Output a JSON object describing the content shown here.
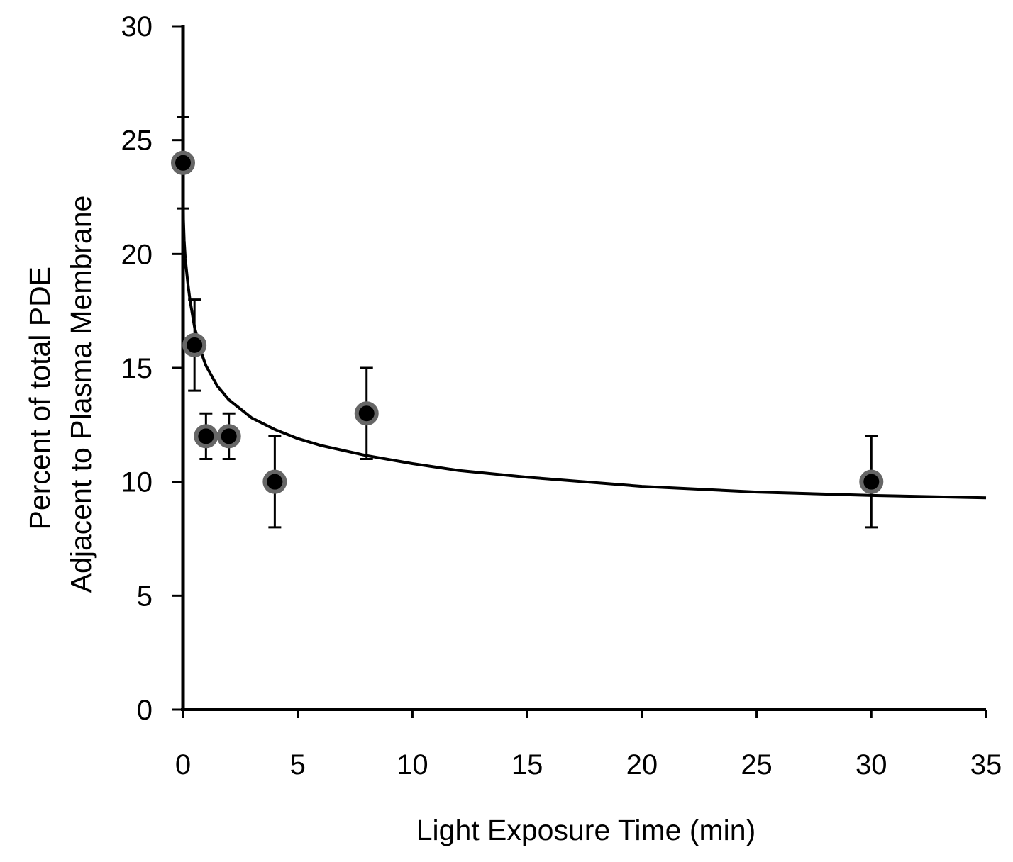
{
  "chart_data": {
    "type": "scatter",
    "title": "",
    "xlabel": "Light Exposure Time (min)",
    "ylabel": [
      "Percent of total PDE",
      "Adjacent to Plasma Membrane"
    ],
    "xlim": [
      0,
      35
    ],
    "ylim": [
      0,
      30
    ],
    "x_ticks": [
      0,
      5,
      10,
      15,
      20,
      25,
      30,
      35
    ],
    "y_ticks": [
      0,
      5,
      10,
      15,
      20,
      25,
      30
    ],
    "x_tick_labels": [
      "0",
      "5",
      "10",
      "15",
      "20",
      "25",
      "30",
      "35"
    ],
    "y_tick_labels": [
      "0",
      "5",
      "10",
      "15",
      "20",
      "25",
      "30"
    ],
    "grid": false,
    "legend": "none",
    "series": [
      {
        "x": [
          0,
          0.5,
          1,
          2,
          4,
          8,
          30
        ],
        "y": [
          24,
          16,
          12,
          12,
          10,
          13,
          10
        ],
        "error": [
          2,
          2,
          1,
          1,
          2,
          2,
          2
        ],
        "marker_fill": "#000000",
        "marker_edge": "#666666"
      }
    ],
    "fit_curve": {
      "x": [
        0,
        0.02,
        0.05,
        0.1,
        0.2,
        0.3,
        0.5,
        0.75,
        1,
        1.5,
        2,
        3,
        4,
        5,
        6,
        8,
        10,
        12,
        15,
        20,
        25,
        30,
        35
      ],
      "y": [
        24,
        21.5,
        20.6,
        19.8,
        18.8,
        18.0,
        16.8,
        15.8,
        15.1,
        14.2,
        13.6,
        12.8,
        12.3,
        11.9,
        11.6,
        11.15,
        10.8,
        10.5,
        10.2,
        9.8,
        9.55,
        9.4,
        9.3
      ],
      "color": "#000000"
    }
  }
}
